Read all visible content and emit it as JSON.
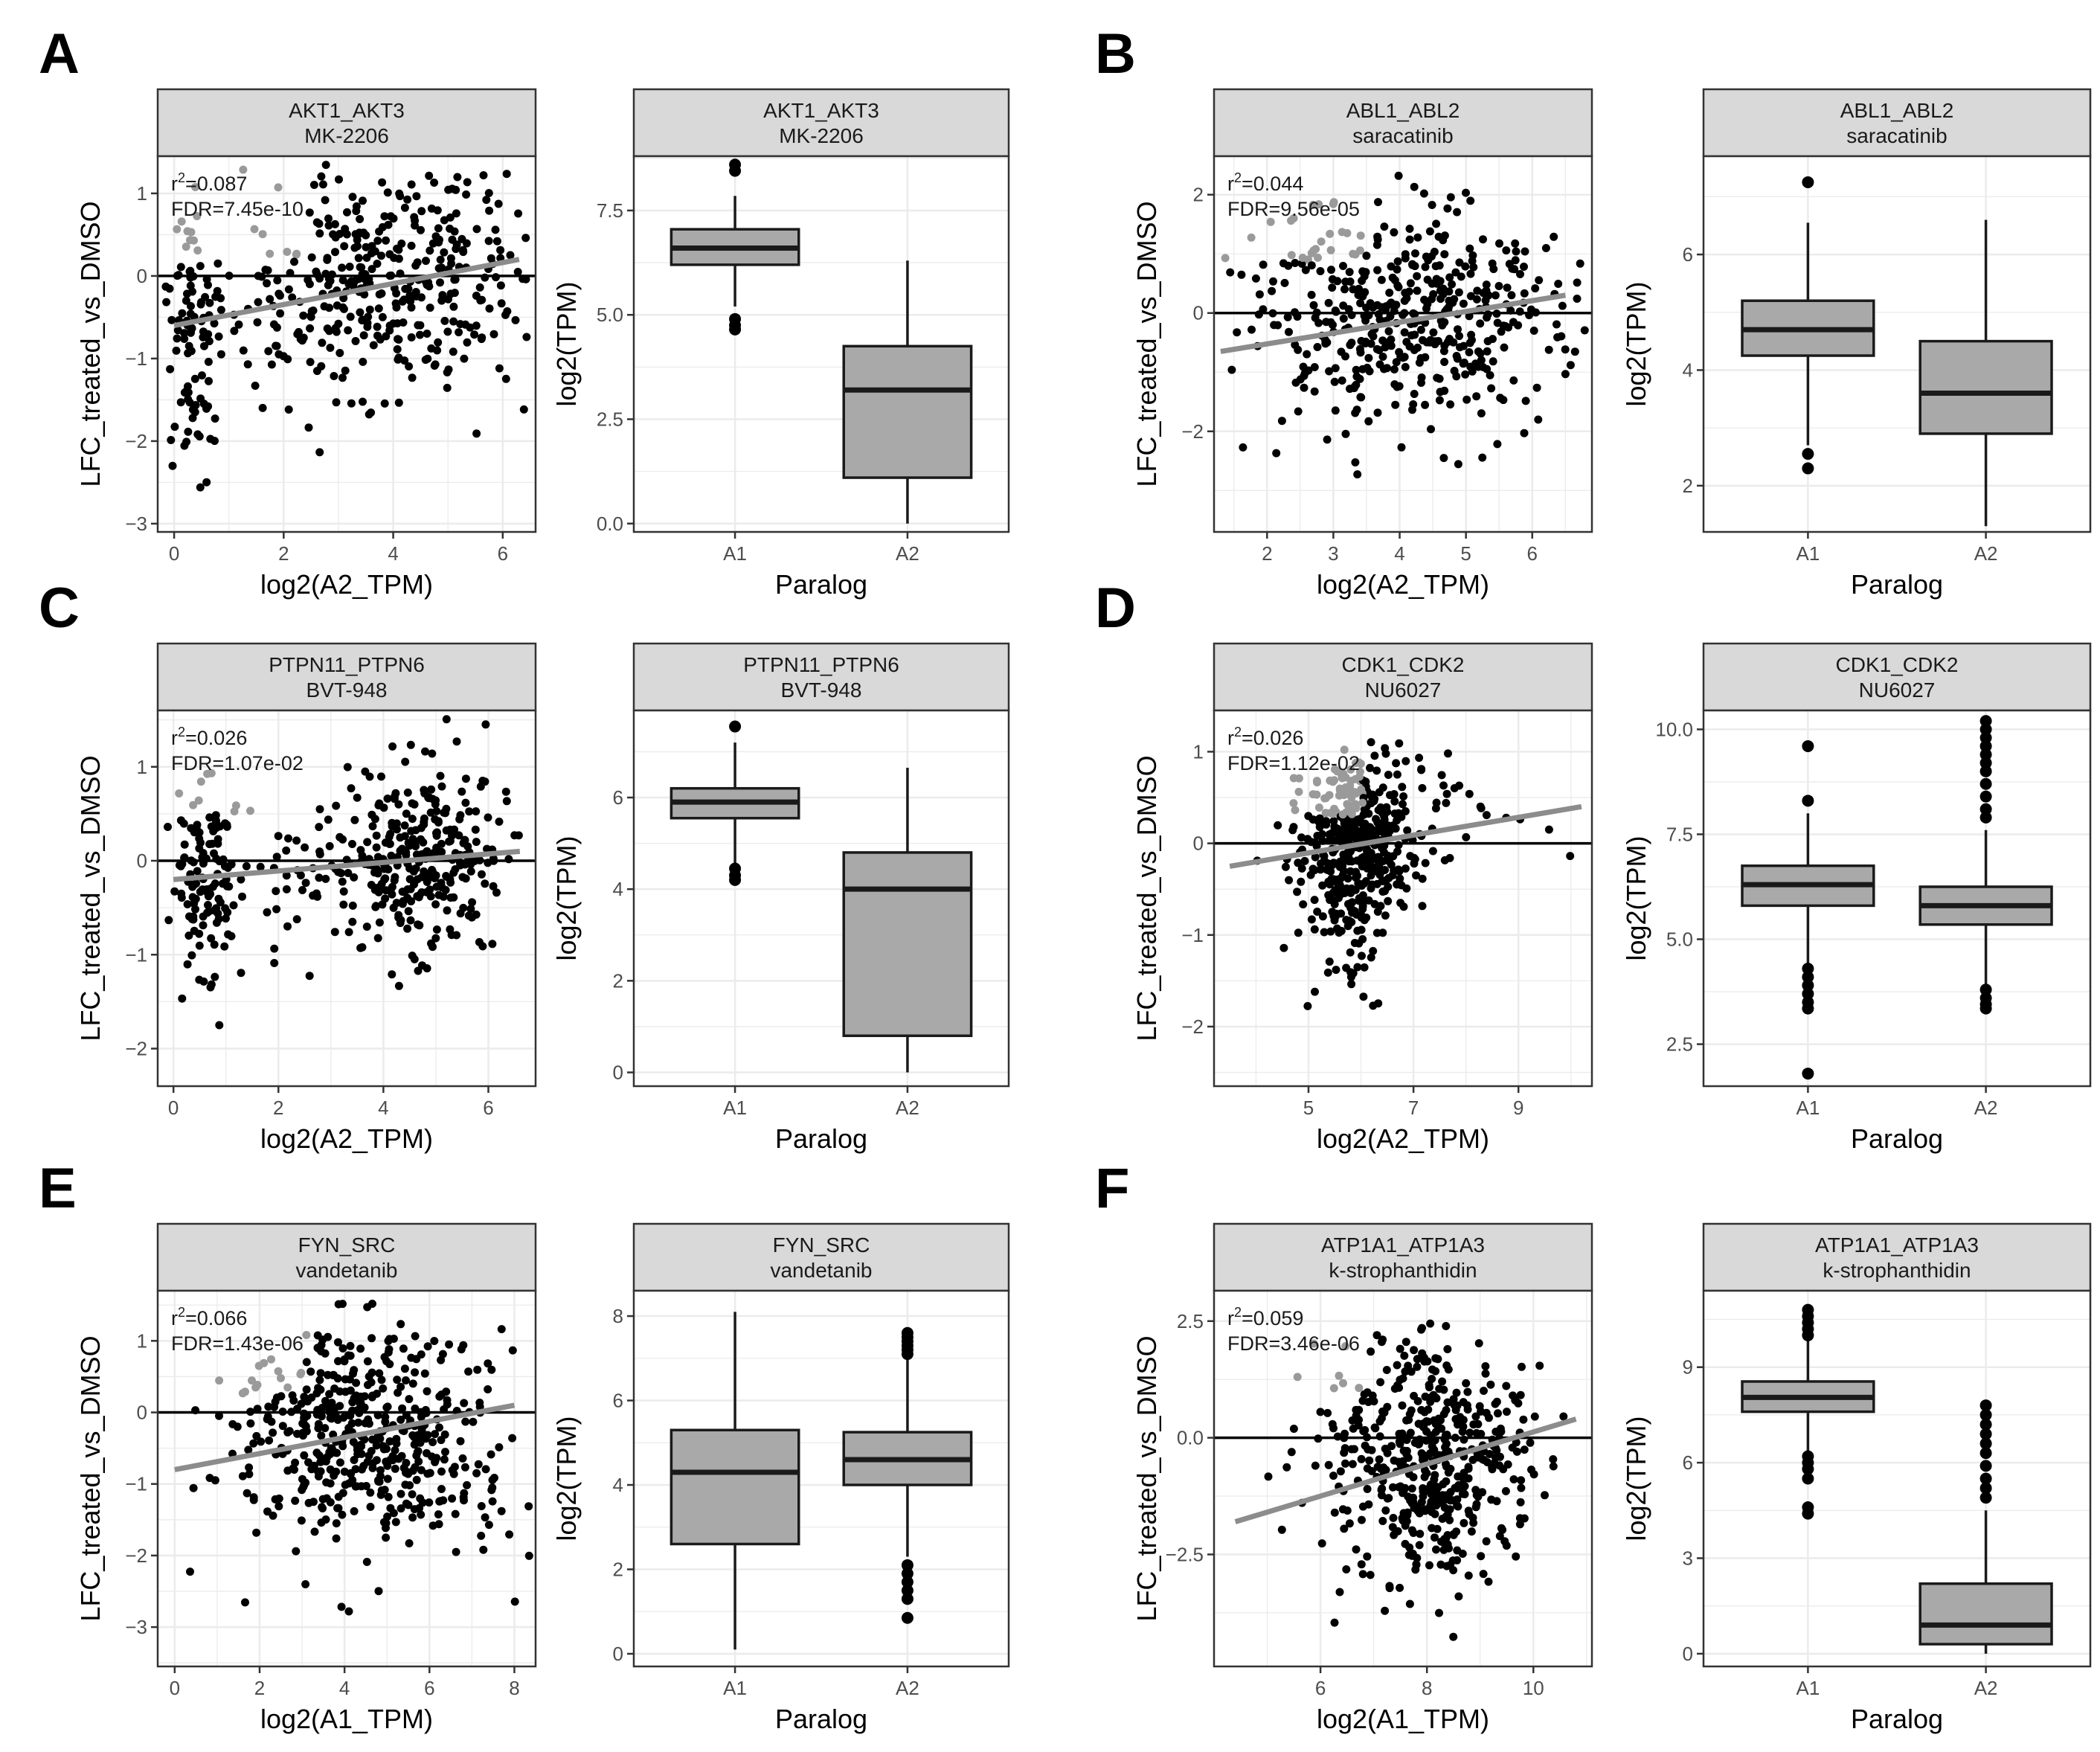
{
  "figure": {
    "panels": [
      {
        "letter": "A",
        "scatter": {
          "strip": [
            "AKT1_AKT3",
            "MK-2206"
          ],
          "xlabel": "log2(A2_TPM)",
          "ylabel": "LFC_treated_vs_DMSO",
          "xlim": [
            -0.3,
            6.6
          ],
          "ylim": [
            -3.1,
            1.45
          ],
          "xticks": [
            0,
            2,
            4,
            6
          ],
          "yticks": [
            1,
            0,
            -1,
            -2,
            -3
          ],
          "r2": "0.087",
          "fdr": "FDR=7.45e-10",
          "fit": [
            [
              0,
              -0.6
            ],
            [
              6.3,
              0.2
            ]
          ],
          "cloud": [
            {
              "cx": 4.2,
              "cy": 0,
              "sx": 1.1,
              "sy": 0.75,
              "n": 330
            },
            {
              "cx": 0.3,
              "cy": -0.6,
              "sx": 0.22,
              "sy": 0.75,
              "n": 90
            },
            {
              "cx": 2.2,
              "cy": -0.3,
              "sx": 1.0,
              "sy": 0.7,
              "n": 80
            }
          ],
          "seed": 11
        },
        "box": {
          "strip": [
            "AKT1_AKT3",
            "MK-2206"
          ],
          "xlabel": "Paralog",
          "ylabel": "log2(TPM)",
          "categories": [
            "A1",
            "A2"
          ],
          "ylim": [
            -0.2,
            8.8
          ],
          "yticks": [
            0.0,
            2.5,
            5.0,
            7.5
          ],
          "ytick_labels": [
            "0.0",
            "2.5",
            "5.0",
            "7.5"
          ],
          "boxes": [
            {
              "lower": 5.2,
              "q1": 6.2,
              "median": 6.6,
              "q3": 7.05,
              "upper": 7.85,
              "outliers": [
                8.6,
                8.45,
                4.9,
                4.75,
                4.65
              ]
            },
            {
              "lower": 0.0,
              "q1": 1.1,
              "median": 3.2,
              "q3": 4.25,
              "upper": 6.3,
              "outliers": []
            }
          ]
        }
      },
      {
        "letter": "B",
        "scatter": {
          "strip": [
            "ABL1_ABL2",
            "saracatinib"
          ],
          "xlabel": "log2(A2_TPM)",
          "ylabel": "LFC_treated_vs_DMSO",
          "xlim": [
            1.2,
            6.9
          ],
          "ylim": [
            -3.7,
            2.65
          ],
          "xticks": [
            2,
            3,
            4,
            5,
            6
          ],
          "yticks": [
            2,
            0,
            -2
          ],
          "r2": "0.044",
          "fdr": "FDR=9.56e-05",
          "fit": [
            [
              1.3,
              -0.65
            ],
            [
              6.5,
              0.3
            ]
          ],
          "cloud": [
            {
              "cx": 4.0,
              "cy": -0.1,
              "sx": 1.2,
              "sy": 0.95,
              "n": 470
            }
          ],
          "seed": 23
        },
        "box": {
          "strip": [
            "ABL1_ABL2",
            "saracatinib"
          ],
          "xlabel": "Paralog",
          "ylabel": "log2(TPM)",
          "categories": [
            "A1",
            "A2"
          ],
          "ylim": [
            1.2,
            7.7
          ],
          "yticks": [
            2,
            4,
            6
          ],
          "ytick_labels": [
            "2",
            "4",
            "6"
          ],
          "boxes": [
            {
              "lower": 2.7,
              "q1": 4.25,
              "median": 4.7,
              "q3": 5.2,
              "upper": 6.55,
              "outliers": [
                7.25,
                2.55,
                2.3
              ]
            },
            {
              "lower": 1.3,
              "q1": 2.9,
              "median": 3.6,
              "q3": 4.5,
              "upper": 6.6,
              "outliers": []
            }
          ]
        }
      },
      {
        "letter": "C",
        "scatter": {
          "strip": [
            "PTPN11_PTPN6",
            "BVT-948"
          ],
          "xlabel": "log2(A2_TPM)",
          "ylabel": "LFC_treated_vs_DMSO",
          "xlim": [
            -0.3,
            6.9
          ],
          "ylim": [
            -2.4,
            1.6
          ],
          "xticks": [
            0,
            2,
            4,
            6
          ],
          "yticks": [
            1,
            0,
            -1,
            -2
          ],
          "r2": "0.026",
          "fdr": "FDR=1.07e-02",
          "fit": [
            [
              0,
              -0.2
            ],
            [
              6.6,
              0.1
            ]
          ],
          "cloud": [
            {
              "cx": 4.8,
              "cy": 0.05,
              "sx": 0.75,
              "sy": 0.5,
              "n": 300
            },
            {
              "cx": 0.6,
              "cy": -0.2,
              "sx": 0.3,
              "sy": 0.55,
              "n": 120
            },
            {
              "cx": 2.4,
              "cy": -0.2,
              "sx": 0.8,
              "sy": 0.35,
              "n": 60
            }
          ],
          "seed": 37
        },
        "box": {
          "strip": [
            "PTPN11_PTPN6",
            "BVT-948"
          ],
          "xlabel": "Paralog",
          "ylabel": "log2(TPM)",
          "categories": [
            "A1",
            "A2"
          ],
          "ylim": [
            -0.3,
            7.9
          ],
          "yticks": [
            0,
            2,
            4,
            6
          ],
          "ytick_labels": [
            "0",
            "2",
            "4",
            "6"
          ],
          "boxes": [
            {
              "lower": 4.5,
              "q1": 5.55,
              "median": 5.9,
              "q3": 6.2,
              "upper": 7.2,
              "outliers": [
                7.55,
                4.45,
                4.3,
                4.2
              ]
            },
            {
              "lower": 0.0,
              "q1": 0.8,
              "median": 4.0,
              "q3": 4.8,
              "upper": 6.65,
              "outliers": []
            }
          ]
        }
      },
      {
        "letter": "D",
        "scatter": {
          "strip": [
            "CDK1_CDK2",
            "NU6027"
          ],
          "xlabel": "log2(A2_TPM)",
          "ylabel": "LFC_treated_vs_DMSO",
          "xlim": [
            3.2,
            10.4
          ],
          "ylim": [
            -2.65,
            1.45
          ],
          "xticks": [
            5,
            7,
            9
          ],
          "yticks": [
            1,
            0,
            -1,
            -2
          ],
          "r2": "0.026",
          "fdr": "FDR=1.12e-02",
          "fit": [
            [
              3.5,
              -0.25
            ],
            [
              10.2,
              0.4
            ]
          ],
          "cloud": [
            {
              "cx": 5.9,
              "cy": 0.0,
              "sx": 0.55,
              "sy": 0.45,
              "n": 430
            },
            {
              "cx": 5.7,
              "cy": -0.9,
              "sx": 0.35,
              "sy": 0.55,
              "n": 40
            },
            {
              "cx": 8.6,
              "cy": 0.35,
              "sx": 0.9,
              "sy": 0.3,
              "n": 20
            }
          ],
          "seed": 53
        },
        "box": {
          "strip": [
            "CDK1_CDK2",
            "NU6027"
          ],
          "xlabel": "Paralog",
          "ylabel": "log2(TPM)",
          "categories": [
            "A1",
            "A2"
          ],
          "ylim": [
            1.5,
            10.45
          ],
          "yticks": [
            2.5,
            5.0,
            7.5,
            10.0
          ],
          "ytick_labels": [
            "2.5",
            "5.0",
            "7.5",
            "10.0"
          ],
          "boxes": [
            {
              "lower": 4.4,
              "q1": 5.8,
              "median": 6.3,
              "q3": 6.75,
              "upper": 8.0,
              "outliers": [
                9.6,
                8.3,
                4.3,
                4.1,
                3.9,
                3.7,
                3.5,
                3.35,
                1.8
              ]
            },
            {
              "lower": 3.9,
              "q1": 5.35,
              "median": 5.8,
              "q3": 6.25,
              "upper": 7.6,
              "outliers": [
                10.2,
                10.0,
                9.8,
                9.6,
                9.4,
                9.2,
                9.0,
                8.7,
                8.4,
                8.1,
                7.9,
                3.8,
                3.6,
                3.45,
                3.35
              ]
            }
          ]
        }
      },
      {
        "letter": "E",
        "scatter": {
          "strip": [
            "FYN_SRC",
            "vandetanib"
          ],
          "xlabel": "log2(A1_TPM)",
          "ylabel": "LFC_treated_vs_DMSO",
          "xlim": [
            -0.4,
            8.5
          ],
          "ylim": [
            -3.55,
            1.7
          ],
          "xticks": [
            0,
            2,
            4,
            6,
            8
          ],
          "yticks": [
            1,
            0,
            -1,
            -2,
            -3
          ],
          "r2": "0.066",
          "fdr": "FDR=1.43e-06",
          "fit": [
            [
              0,
              -0.8
            ],
            [
              8,
              0.1
            ]
          ],
          "cloud": [
            {
              "cx": 4.6,
              "cy": -0.3,
              "sx": 1.7,
              "sy": 0.8,
              "n": 500
            }
          ],
          "seed": 71
        },
        "box": {
          "strip": [
            "FYN_SRC",
            "vandetanib"
          ],
          "xlabel": "Paralog",
          "ylabel": "log2(TPM)",
          "categories": [
            "A1",
            "A2"
          ],
          "ylim": [
            -0.3,
            8.6
          ],
          "yticks": [
            0,
            2,
            4,
            6,
            8
          ],
          "ytick_labels": [
            "0",
            "2",
            "4",
            "6",
            "8"
          ],
          "boxes": [
            {
              "lower": 0.1,
              "q1": 2.6,
              "median": 4.3,
              "q3": 5.3,
              "upper": 8.1,
              "outliers": []
            },
            {
              "lower": 2.3,
              "q1": 4.0,
              "median": 4.6,
              "q3": 5.25,
              "upper": 7.0,
              "outliers": [
                7.6,
                7.5,
                7.4,
                7.3,
                7.2,
                7.1,
                2.1,
                1.9,
                1.7,
                1.5,
                1.3,
                0.85
              ]
            }
          ]
        }
      },
      {
        "letter": "F",
        "scatter": {
          "strip": [
            "ATP1A1_ATP1A3",
            "k-strophanthidin"
          ],
          "xlabel": "log2(A1_TPM)",
          "ylabel": "LFC_treated_vs_DMSO",
          "xlim": [
            4.0,
            11.1
          ],
          "ylim": [
            -4.9,
            3.15
          ],
          "xticks": [
            6,
            8,
            10
          ],
          "yticks": [
            2.5,
            0.0,
            -2.5
          ],
          "ytick_labels": [
            "2.5",
            "0.0",
            "-2.5"
          ],
          "r2": "0.059",
          "fdr": "FDR=3.46e-06",
          "fit": [
            [
              4.4,
              -1.8
            ],
            [
              10.8,
              0.4
            ]
          ],
          "cloud": [
            {
              "cx": 8.0,
              "cy": -0.5,
              "sx": 0.95,
              "sy": 1.2,
              "n": 500
            }
          ],
          "seed": 89
        },
        "box": {
          "strip": [
            "ATP1A1_ATP1A3",
            "k-strophanthidin"
          ],
          "xlabel": "Paralog",
          "ylabel": "log2(TPM)",
          "categories": [
            "A1",
            "A2"
          ],
          "ylim": [
            -0.4,
            11.4
          ],
          "yticks": [
            0,
            3,
            6,
            9
          ],
          "ytick_labels": [
            "0",
            "3",
            "6",
            "9"
          ],
          "boxes": [
            {
              "lower": 6.3,
              "q1": 7.6,
              "median": 8.05,
              "q3": 8.55,
              "upper": 9.9,
              "outliers": [
                10.8,
                10.6,
                10.4,
                10.2,
                10.0,
                6.2,
                6.0,
                5.8,
                5.5,
                4.6,
                4.4
              ]
            },
            {
              "lower": 0.0,
              "q1": 0.3,
              "median": 0.9,
              "q3": 2.2,
              "upper": 4.5,
              "outliers": [
                7.8,
                7.5,
                7.2,
                6.9,
                6.6,
                6.3,
                5.9,
                5.5,
                5.2,
                4.9
              ]
            }
          ]
        }
      }
    ]
  }
}
